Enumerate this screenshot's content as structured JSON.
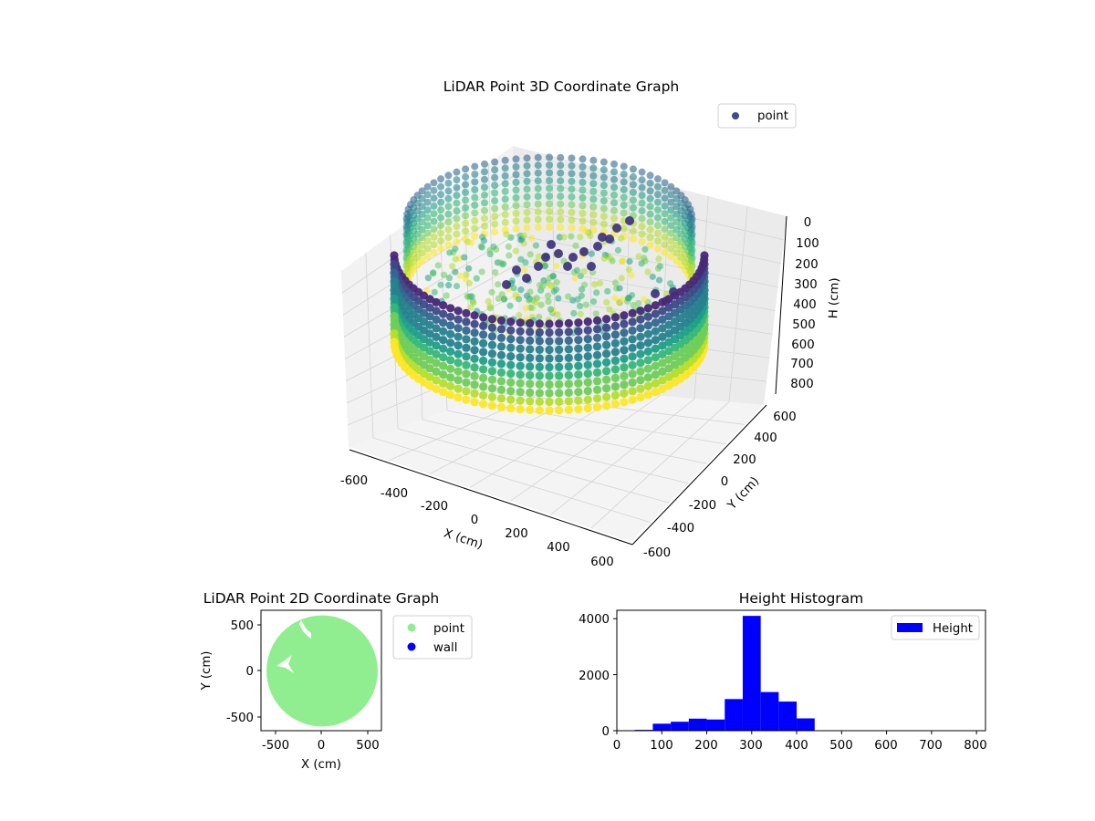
{
  "chart_data": [
    {
      "type": "scatter3d",
      "title": "LiDAR Point 3D Coordinate Graph",
      "xlabel": "X (cm)",
      "ylabel": "Y (cm)",
      "zlabel": "H (cm)",
      "xlim": [
        -650,
        650
      ],
      "ylim": [
        -650,
        650
      ],
      "zlim": [
        850,
        0
      ],
      "xticks": [
        "-600",
        "-400",
        "-200",
        "0",
        "200",
        "400",
        "600"
      ],
      "yticks": [
        "-600",
        "-400",
        "-200",
        "0",
        "200",
        "400",
        "600"
      ],
      "zticks": [
        "0",
        "100",
        "200",
        "300",
        "400",
        "500",
        "600",
        "700",
        "800"
      ],
      "colormap": "viridis",
      "legend": {
        "label": "point",
        "color": "#3b4d8c",
        "placement": "upper-right"
      },
      "grid": true
    },
    {
      "type": "scatter",
      "title": "LiDAR Point 2D Coordinate Graph",
      "xlabel": "X (cm)",
      "ylabel": "Y (cm)",
      "xlim": [
        -650,
        650
      ],
      "ylim": [
        -650,
        650
      ],
      "xticks": [
        "-500",
        "0",
        "500"
      ],
      "yticks": [
        "-500",
        "0",
        "500"
      ],
      "series": [
        {
          "name": "point",
          "color": "#90ee90"
        },
        {
          "name": "wall",
          "color": "#0000ff"
        }
      ],
      "legend_placement": "outside-right"
    },
    {
      "type": "bar",
      "title": "Height Histogram",
      "xlim": [
        0,
        820
      ],
      "ylim": [
        0,
        4300
      ],
      "xticks": [
        "0",
        "100",
        "200",
        "300",
        "400",
        "500",
        "600",
        "700",
        "800"
      ],
      "yticks": [
        "0",
        "2000",
        "4000"
      ],
      "bin_width": 40,
      "bins": [
        {
          "start": 0,
          "count": 10
        },
        {
          "start": 40,
          "count": 30
        },
        {
          "start": 80,
          "count": 250
        },
        {
          "start": 120,
          "count": 320
        },
        {
          "start": 160,
          "count": 430
        },
        {
          "start": 200,
          "count": 400
        },
        {
          "start": 240,
          "count": 1130
        },
        {
          "start": 280,
          "count": 4100
        },
        {
          "start": 320,
          "count": 1380
        },
        {
          "start": 360,
          "count": 1040
        },
        {
          "start": 400,
          "count": 440
        }
      ],
      "color": "#0000ff",
      "legend": {
        "label": "Height",
        "placement": "upper-right"
      }
    }
  ]
}
